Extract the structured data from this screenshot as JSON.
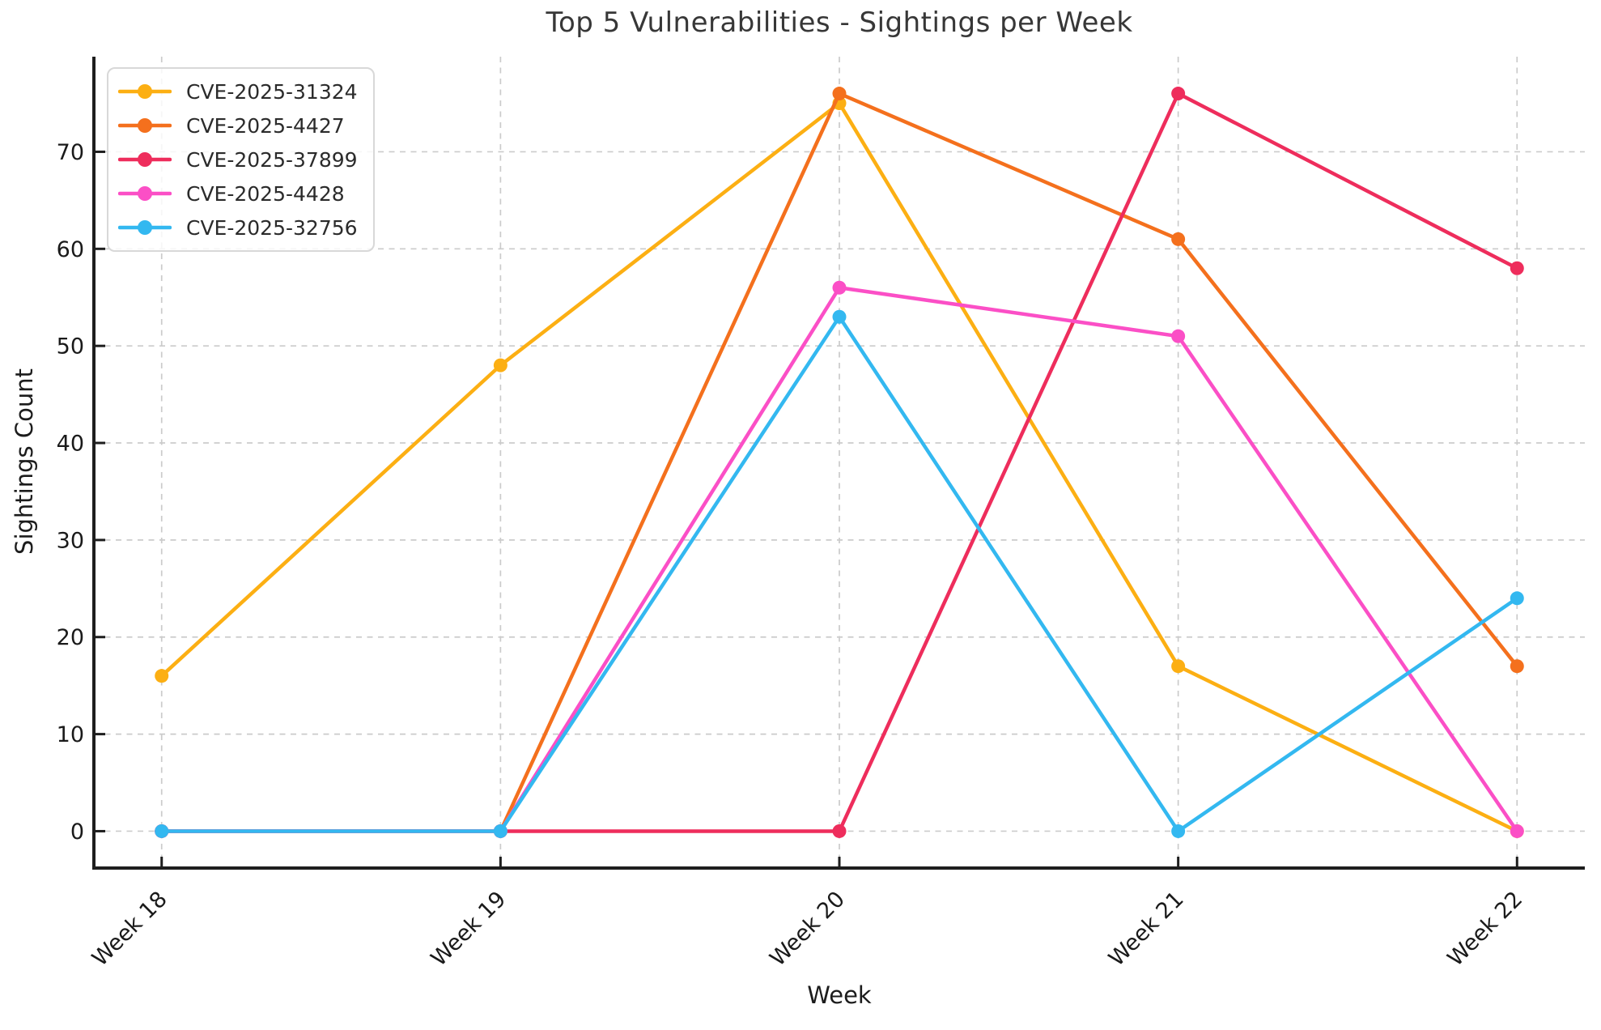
{
  "chart_data": {
    "type": "line",
    "title": "Top 5 Vulnerabilities - Sightings per Week",
    "xlabel": "Week",
    "ylabel": "Sightings Count",
    "categories": [
      "Week 18",
      "Week 19",
      "Week 20",
      "Week 21",
      "Week 22"
    ],
    "series": [
      {
        "name": "CVE-2025-31324",
        "color": "#fcaf13",
        "values": [
          16,
          48,
          75,
          17,
          0
        ]
      },
      {
        "name": "CVE-2025-4427",
        "color": "#f4701d",
        "values": [
          0,
          0,
          76,
          61,
          17
        ]
      },
      {
        "name": "CVE-2025-37899",
        "color": "#ee2d5c",
        "values": [
          0,
          0,
          0,
          76,
          58
        ]
      },
      {
        "name": "CVE-2025-4428",
        "color": "#fb4fc6",
        "values": [
          0,
          0,
          56,
          51,
          0
        ]
      },
      {
        "name": "CVE-2025-32756",
        "color": "#33b8f0",
        "values": [
          0,
          0,
          53,
          0,
          24
        ]
      }
    ],
    "yticks": [
      0,
      10,
      20,
      30,
      40,
      50,
      60,
      70
    ],
    "ylim": [
      -3.8,
      79.8
    ],
    "grid": true,
    "grid_style": "dashed",
    "legend_position": "upper-left",
    "marker": "circle",
    "colors": {
      "grid": "#cbcbcb",
      "spine": "#1e1e1e",
      "tick_label": "#1a1a1a",
      "title_text": "#373737"
    }
  }
}
